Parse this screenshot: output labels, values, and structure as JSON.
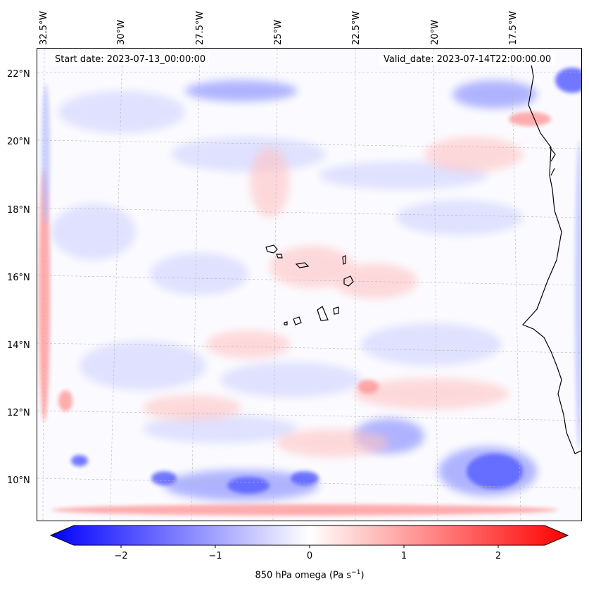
{
  "map": {
    "start_date_text": "Start date: 2023-07-13_00:00:00",
    "valid_date_text": "Valid_date: 2023-07-14T22:00:00.00",
    "longitude_labels": [
      "32.5°W",
      "30°W",
      "27.5°W",
      "25°W",
      "22.5°W",
      "20°W",
      "17.5°W"
    ],
    "latitude_labels": [
      "22°N",
      "20°N",
      "18°N",
      "16°N",
      "14°N",
      "12°N",
      "10°N"
    ],
    "extent": {
      "lon_min": -33.0,
      "lon_max": -15.1,
      "lat_min": 8.9,
      "lat_max": 22.8
    },
    "field": "850 hPa omega",
    "colormap": "bwr",
    "colors": {
      "negative": "#0000ff",
      "zero": "#ffffff",
      "positive": "#ff0000",
      "coastline": "#000000"
    }
  },
  "colorbar": {
    "ticks": [
      "−2",
      "−1",
      "0",
      "1",
      "2"
    ],
    "tick_values": [
      -2,
      -1,
      0,
      1,
      2
    ],
    "range": [
      -2.5,
      2.5
    ],
    "label_main": "850 hPa omega (Pa s",
    "label_exp": "−1",
    "label_close": ")"
  }
}
